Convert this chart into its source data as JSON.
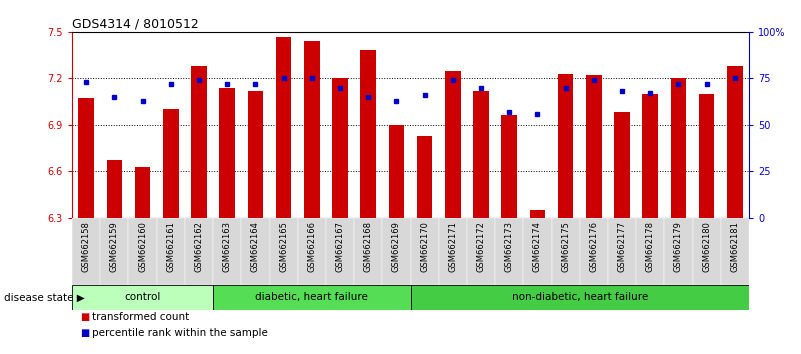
{
  "title": "GDS4314 / 8010512",
  "samples": [
    "GSM662158",
    "GSM662159",
    "GSM662160",
    "GSM662161",
    "GSM662162",
    "GSM662163",
    "GSM662164",
    "GSM662165",
    "GSM662166",
    "GSM662167",
    "GSM662168",
    "GSM662169",
    "GSM662170",
    "GSM662171",
    "GSM662172",
    "GSM662173",
    "GSM662174",
    "GSM662175",
    "GSM662176",
    "GSM662177",
    "GSM662178",
    "GSM662179",
    "GSM662180",
    "GSM662181"
  ],
  "bar_values": [
    7.07,
    6.67,
    6.63,
    7.0,
    7.28,
    7.14,
    7.12,
    7.47,
    7.44,
    7.2,
    7.38,
    6.9,
    6.83,
    7.25,
    7.12,
    6.96,
    6.35,
    7.23,
    7.22,
    6.98,
    7.1,
    7.2,
    7.1,
    7.28
  ],
  "percentile_values": [
    73,
    65,
    63,
    72,
    74,
    72,
    72,
    75,
    75,
    70,
    65,
    63,
    66,
    74,
    70,
    57,
    56,
    70,
    74,
    68,
    67,
    72,
    72,
    75
  ],
  "groups": [
    {
      "label": "control",
      "start": 0,
      "end": 5,
      "color": "#bbffbb"
    },
    {
      "label": "diabetic, heart failure",
      "start": 5,
      "end": 12,
      "color": "#55dd55"
    },
    {
      "label": "non-diabetic, heart failure",
      "start": 12,
      "end": 24,
      "color": "#44cc44"
    }
  ],
  "ylim": [
    6.3,
    7.5
  ],
  "yticks": [
    6.3,
    6.6,
    6.9,
    7.2,
    7.5
  ],
  "ytick_labels": [
    "6.3",
    "6.6",
    "6.9",
    "7.2",
    "7.5"
  ],
  "right_yticks": [
    0,
    25,
    50,
    75,
    100
  ],
  "right_ytick_labels": [
    "0",
    "25",
    "50",
    "75",
    "100%"
  ],
  "bar_color": "#cc0000",
  "dot_color": "#0000cc",
  "background_color": "#ffffff",
  "legend_bar_label": "transformed count",
  "legend_dot_label": "percentile rank within the sample",
  "group_label": "disease state",
  "title_fontsize": 9,
  "axis_fontsize": 7.5,
  "tick_fontsize": 7,
  "sample_fontsize": 6,
  "group_fontsize": 7.5
}
